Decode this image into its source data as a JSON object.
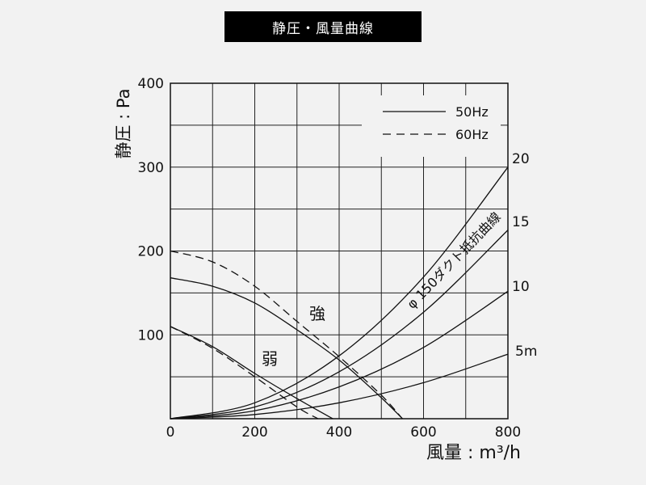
{
  "chart_data": {
    "type": "line",
    "title": "静圧・風量曲線",
    "xlabel": "風量 : m³/h",
    "ylabel": "静圧 : Pa",
    "xlim": [
      0,
      800
    ],
    "ylim": [
      0,
      400
    ],
    "xticks": [
      "0",
      "200",
      "400",
      "600",
      "800"
    ],
    "yticks": [
      "100",
      "200",
      "300",
      "400"
    ],
    "grid": true,
    "legend": [
      {
        "label": "50Hz",
        "style": "solid"
      },
      {
        "label": "60Hz",
        "style": "dashed"
      }
    ],
    "annotations": {
      "strong": "強",
      "weak": "弱",
      "duct": "φ 150ダクト抵抗曲線"
    },
    "fan_curves": [
      {
        "mode": "強",
        "frequency": "50Hz",
        "style": "solid",
        "x": [
          0,
          100,
          200,
          300,
          400,
          500,
          550
        ],
        "y": [
          168,
          158,
          138,
          106,
          70,
          25,
          0
        ]
      },
      {
        "mode": "強",
        "frequency": "60Hz",
        "style": "dashed",
        "x": [
          0,
          100,
          200,
          300,
          400,
          500,
          550
        ],
        "y": [
          200,
          187,
          158,
          116,
          74,
          28,
          0
        ]
      },
      {
        "mode": "弱",
        "frequency": "50Hz",
        "style": "solid",
        "x": [
          0,
          100,
          200,
          300,
          385
        ],
        "y": [
          110,
          86,
          54,
          24,
          0
        ]
      },
      {
        "mode": "弱",
        "frequency": "60Hz",
        "style": "dashed",
        "x": [
          0,
          100,
          200,
          300,
          350
        ],
        "y": [
          110,
          84,
          50,
          14,
          0
        ]
      }
    ],
    "duct_curves": [
      {
        "label": "20",
        "x": [
          0,
          200,
          400,
          600,
          800
        ],
        "y": [
          0,
          19,
          75,
          169,
          300
        ]
      },
      {
        "label": "15",
        "x": [
          0,
          200,
          400,
          600,
          800
        ],
        "y": [
          0,
          14,
          56,
          127,
          225
        ]
      },
      {
        "label": "10",
        "x": [
          0,
          200,
          400,
          600,
          800
        ],
        "y": [
          0,
          9.5,
          38,
          85,
          152
        ]
      },
      {
        "label": "5m",
        "x": [
          0,
          200,
          400,
          600,
          800
        ],
        "y": [
          0,
          5,
          19,
          43,
          77
        ]
      }
    ]
  }
}
